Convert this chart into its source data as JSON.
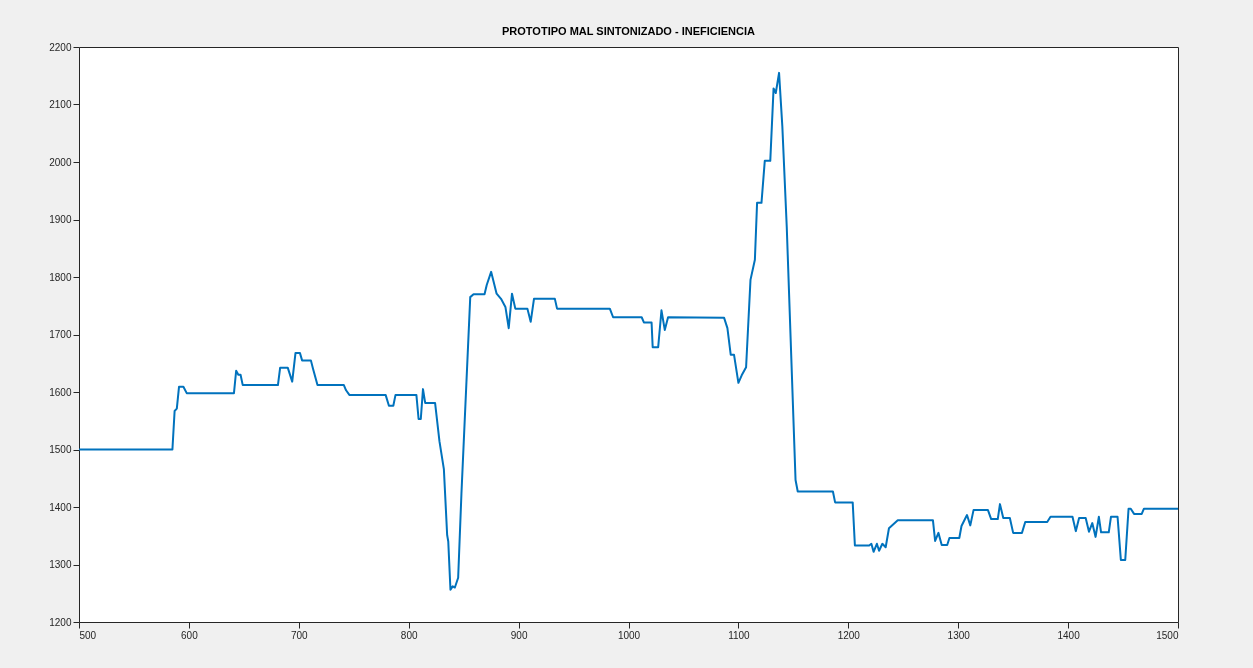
{
  "chart_data": {
    "type": "line",
    "title": "PROTOTIPO MAL SINTONIZADO - INEFICIENCIA",
    "x": [
      500,
      585,
      587,
      589,
      591,
      595,
      598,
      641,
      643,
      645,
      647,
      649,
      681,
      683,
      690,
      694,
      697,
      701,
      703,
      711,
      713,
      717,
      741,
      743,
      746,
      779,
      782,
      786,
      788,
      807,
      809,
      811,
      813,
      815,
      824,
      828,
      832,
      835,
      836,
      838,
      840,
      842,
      845,
      848,
      856,
      859,
      869,
      871,
      875,
      880,
      884,
      888,
      891,
      894,
      897,
      908,
      911,
      914,
      933,
      935,
      983,
      986,
      1012,
      1014,
      1021,
      1022,
      1027,
      1030,
      1033,
      1036,
      1087,
      1090,
      1093,
      1096,
      1100,
      1103,
      1107,
      1111,
      1115,
      1117,
      1121,
      1124,
      1129,
      1132,
      1134,
      1137,
      1140,
      1144,
      1152,
      1154,
      1186,
      1188,
      1204,
      1206,
      1219,
      1221,
      1223,
      1226,
      1228,
      1231,
      1234,
      1237,
      1245,
      1277,
      1279,
      1282,
      1285,
      1290,
      1292,
      1301,
      1303,
      1308,
      1311,
      1314,
      1327,
      1330,
      1336,
      1338,
      1341,
      1347,
      1350,
      1358,
      1361,
      1381,
      1384,
      1404,
      1407,
      1410,
      1416,
      1419,
      1422,
      1425,
      1428,
      1430,
      1437,
      1439,
      1445,
      1448,
      1452,
      1455,
      1457,
      1460,
      1462,
      1467,
      1469,
      1500
    ],
    "series": [
      {
        "color": "#0072bd",
        "values": [
          1500,
          1500,
          1567,
          1571,
          1609,
          1609,
          1598,
          1598,
          1637,
          1630,
          1630,
          1612,
          1612,
          1642,
          1642,
          1618,
          1668,
          1668,
          1655,
          1655,
          1640,
          1612,
          1612,
          1603,
          1595,
          1595,
          1576,
          1576,
          1595,
          1595,
          1553,
          1553,
          1605,
          1581,
          1581,
          1514,
          1466,
          1351,
          1340,
          1256,
          1262,
          1260,
          1277,
          1424,
          1765,
          1770,
          1770,
          1786,
          1809,
          1771,
          1762,
          1748,
          1711,
          1771,
          1745,
          1745,
          1722,
          1762,
          1762,
          1745,
          1745,
          1730,
          1730,
          1721,
          1721,
          1678,
          1678,
          1742,
          1708,
          1730,
          1729,
          1711,
          1665,
          1665,
          1616,
          1629,
          1643,
          1795,
          1830,
          1929,
          1929,
          2002,
          2002,
          2128,
          2120,
          2155,
          2061,
          1887,
          1447,
          1427,
          1427,
          1408,
          1408,
          1333,
          1333,
          1336,
          1322,
          1336,
          1324,
          1336,
          1330,
          1363,
          1377,
          1377,
          1341,
          1355,
          1334,
          1334,
          1346,
          1346,
          1367,
          1386,
          1368,
          1395,
          1395,
          1379,
          1379,
          1405,
          1381,
          1381,
          1355,
          1355,
          1374,
          1374,
          1383,
          1383,
          1358,
          1381,
          1381,
          1357,
          1372,
          1348,
          1383,
          1356,
          1356,
          1383,
          1383,
          1308,
          1308,
          1397,
          1397,
          1388,
          1388,
          1388,
          1397,
          1397
        ]
      }
    ],
    "xlim": [
      500,
      1500
    ],
    "ylim": [
      1200,
      2200
    ],
    "xticks": [
      500,
      600,
      700,
      800,
      900,
      1000,
      1100,
      1200,
      1300,
      1400,
      1500
    ],
    "yticks": [
      1200,
      1300,
      1400,
      1500,
      1600,
      1700,
      1800,
      1900,
      2000,
      2100,
      2200
    ]
  }
}
